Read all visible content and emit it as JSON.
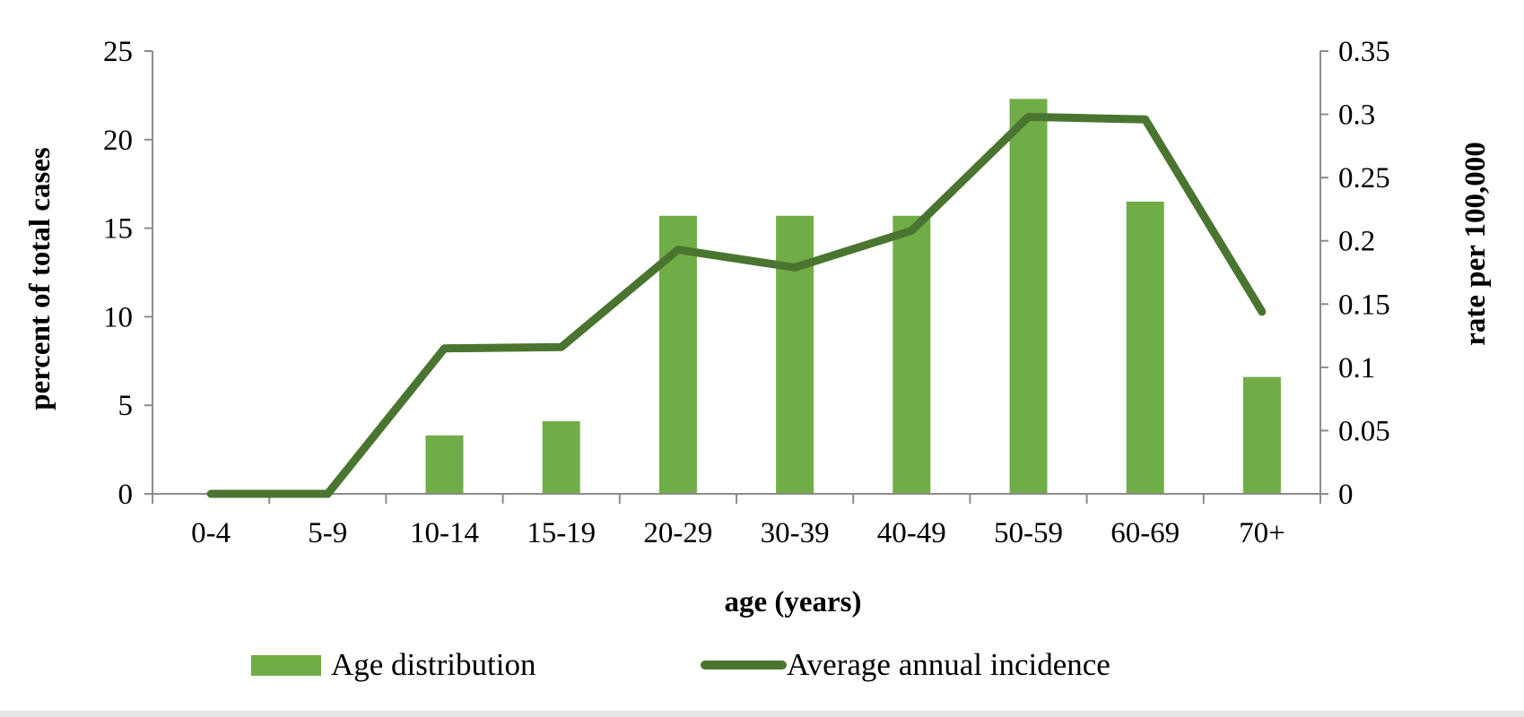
{
  "chart_data": {
    "type": "bar",
    "categories": [
      "0-4",
      "5-9",
      "10-14",
      "15-19",
      "20-29",
      "30-39",
      "40-49",
      "50-59",
      "60-69",
      "70+"
    ],
    "xlabel": "age (years)",
    "ylabel": "percent of total cases",
    "y2label": "rate per 100,000",
    "ylim": [
      0,
      25
    ],
    "y2lim": [
      0,
      0.35
    ],
    "yticks": [
      "0",
      "5",
      "10",
      "15",
      "20",
      "25"
    ],
    "y2ticks": [
      "0",
      "0.05",
      "0.1",
      "0.15",
      "0.2",
      "0.25",
      "0.3",
      "0.35"
    ],
    "grid": false,
    "legend_position": "bottom",
    "series": [
      {
        "name": "Age distribution",
        "kind": "bar",
        "axis": "left",
        "color": "#70ad47",
        "values": [
          0,
          0,
          3.3,
          4.1,
          15.7,
          15.7,
          15.7,
          22.3,
          16.5,
          6.6
        ]
      },
      {
        "name": "Average annual incidence",
        "kind": "line",
        "axis": "right",
        "color": "#4a7530",
        "values": [
          0,
          0,
          0.115,
          0.116,
          0.193,
          0.179,
          0.208,
          0.298,
          0.296,
          0.144
        ]
      }
    ]
  }
}
